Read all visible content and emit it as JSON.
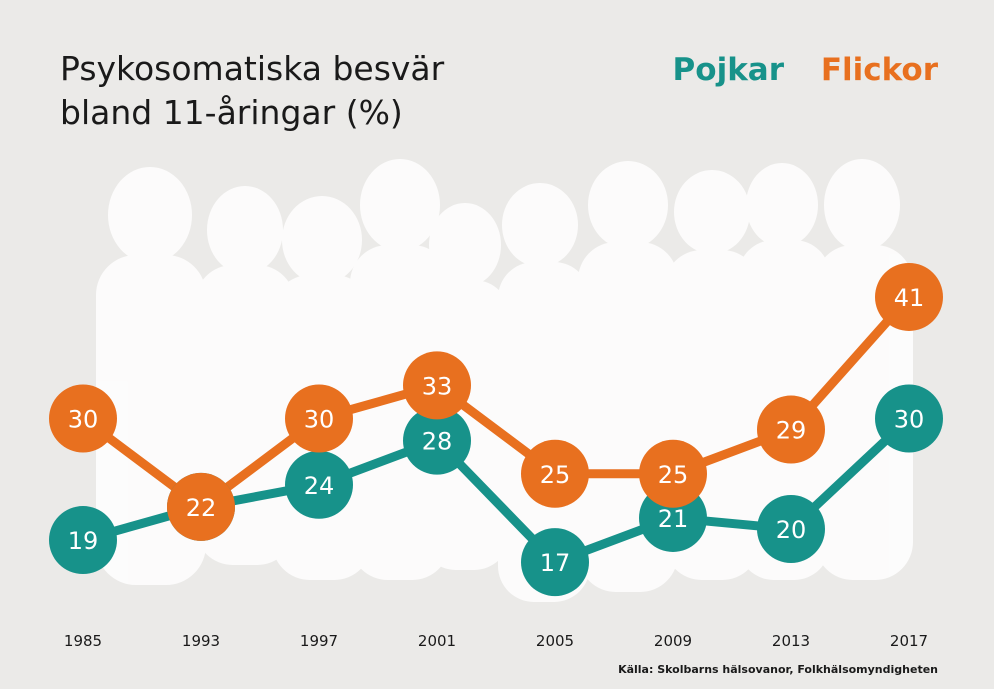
{
  "chart_data": {
    "type": "line",
    "title_lines": [
      "Psykosomatiska besvär",
      "bland 11-åringar (%)"
    ],
    "categories": [
      "1985",
      "1993",
      "1997",
      "2001",
      "2005",
      "2009",
      "2013",
      "2017"
    ],
    "series": [
      {
        "name": "Pojkar",
        "color": "#17928a",
        "values": [
          19,
          22,
          24,
          28,
          17,
          21,
          20,
          30
        ]
      },
      {
        "name": "Flickor",
        "color": "#e8701f",
        "values": [
          30,
          22,
          30,
          33,
          25,
          25,
          29,
          41
        ]
      }
    ],
    "ylim": [
      10,
      45
    ],
    "grid": false,
    "legend_position": "top-right",
    "source": "Källa: Skolbarns hälsovanor, Folkhälsomyndigheten"
  },
  "colors": {
    "background": "#ebeae8",
    "silhouettes": "#ffffff",
    "label_text": "#ffffff",
    "axis_text": "#1a1a1a"
  }
}
